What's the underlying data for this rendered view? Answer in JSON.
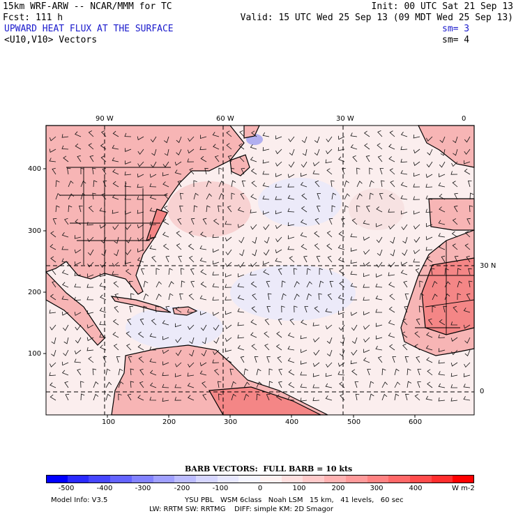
{
  "header": {
    "line1_left": "15km WRF-ARW -- NCAR/MMM for TC",
    "line1_right": "Init: 00 UTC Sat 21 Sep 13",
    "line2_left": "Fcst: 111 h",
    "line2_right": "Valid: 15 UTC Wed 25 Sep 13 (09 MDT Wed 25 Sep 13)",
    "field_title": "UPWARD HEAT FLUX AT THE SURFACE",
    "field_sm": "sm= 3",
    "vector_title": "<U10,V10> Vectors",
    "vector_sm": "sm= 4"
  },
  "map": {
    "top_lon_labels": [
      "90 W",
      "60 W",
      "30 W",
      "0"
    ],
    "right_lat_labels": [
      "30 N",
      "0"
    ],
    "y_ticks": [
      "400",
      "300",
      "200",
      "100"
    ],
    "x_ticks": [
      "100",
      "200",
      "300",
      "400",
      "500",
      "600"
    ]
  },
  "legend": {
    "barb_title": "BARB VECTORS:  FULL BARB = 10 kts",
    "colorbar_labels": [
      "-500",
      "-400",
      "-300",
      "-200",
      "-100",
      "0",
      "100",
      "200",
      "300",
      "400"
    ],
    "units": "W m-2",
    "colors": [
      "#0000ff",
      "#2a2aff",
      "#4646ff",
      "#6464ff",
      "#8282ff",
      "#a0a0ff",
      "#bcbcff",
      "#d6d6ff",
      "#e8e8ff",
      "#f6f6ff",
      "#fff2f2",
      "#ffe0e0",
      "#ffcaca",
      "#ffb2b2",
      "#ff9a9a",
      "#ff8282",
      "#ff6868",
      "#ff4c4c",
      "#ff2e2e",
      "#ff0000"
    ]
  },
  "footer": {
    "model_info": "Model Info: V3.5",
    "physics_line1": "YSU PBL   WSM 6class   Noah LSM   15 km,   41 levels,   60 sec",
    "physics_line2": "LW: RRTM SW: RRTMG    DIFF: simple KM: 2D Smagor"
  },
  "style": {
    "ocean": "#fbeeee",
    "land_fill": "#f7b5b5",
    "land_hot": "#f48686",
    "cool_patch": "#e8e8fb",
    "lines": "#000000"
  }
}
